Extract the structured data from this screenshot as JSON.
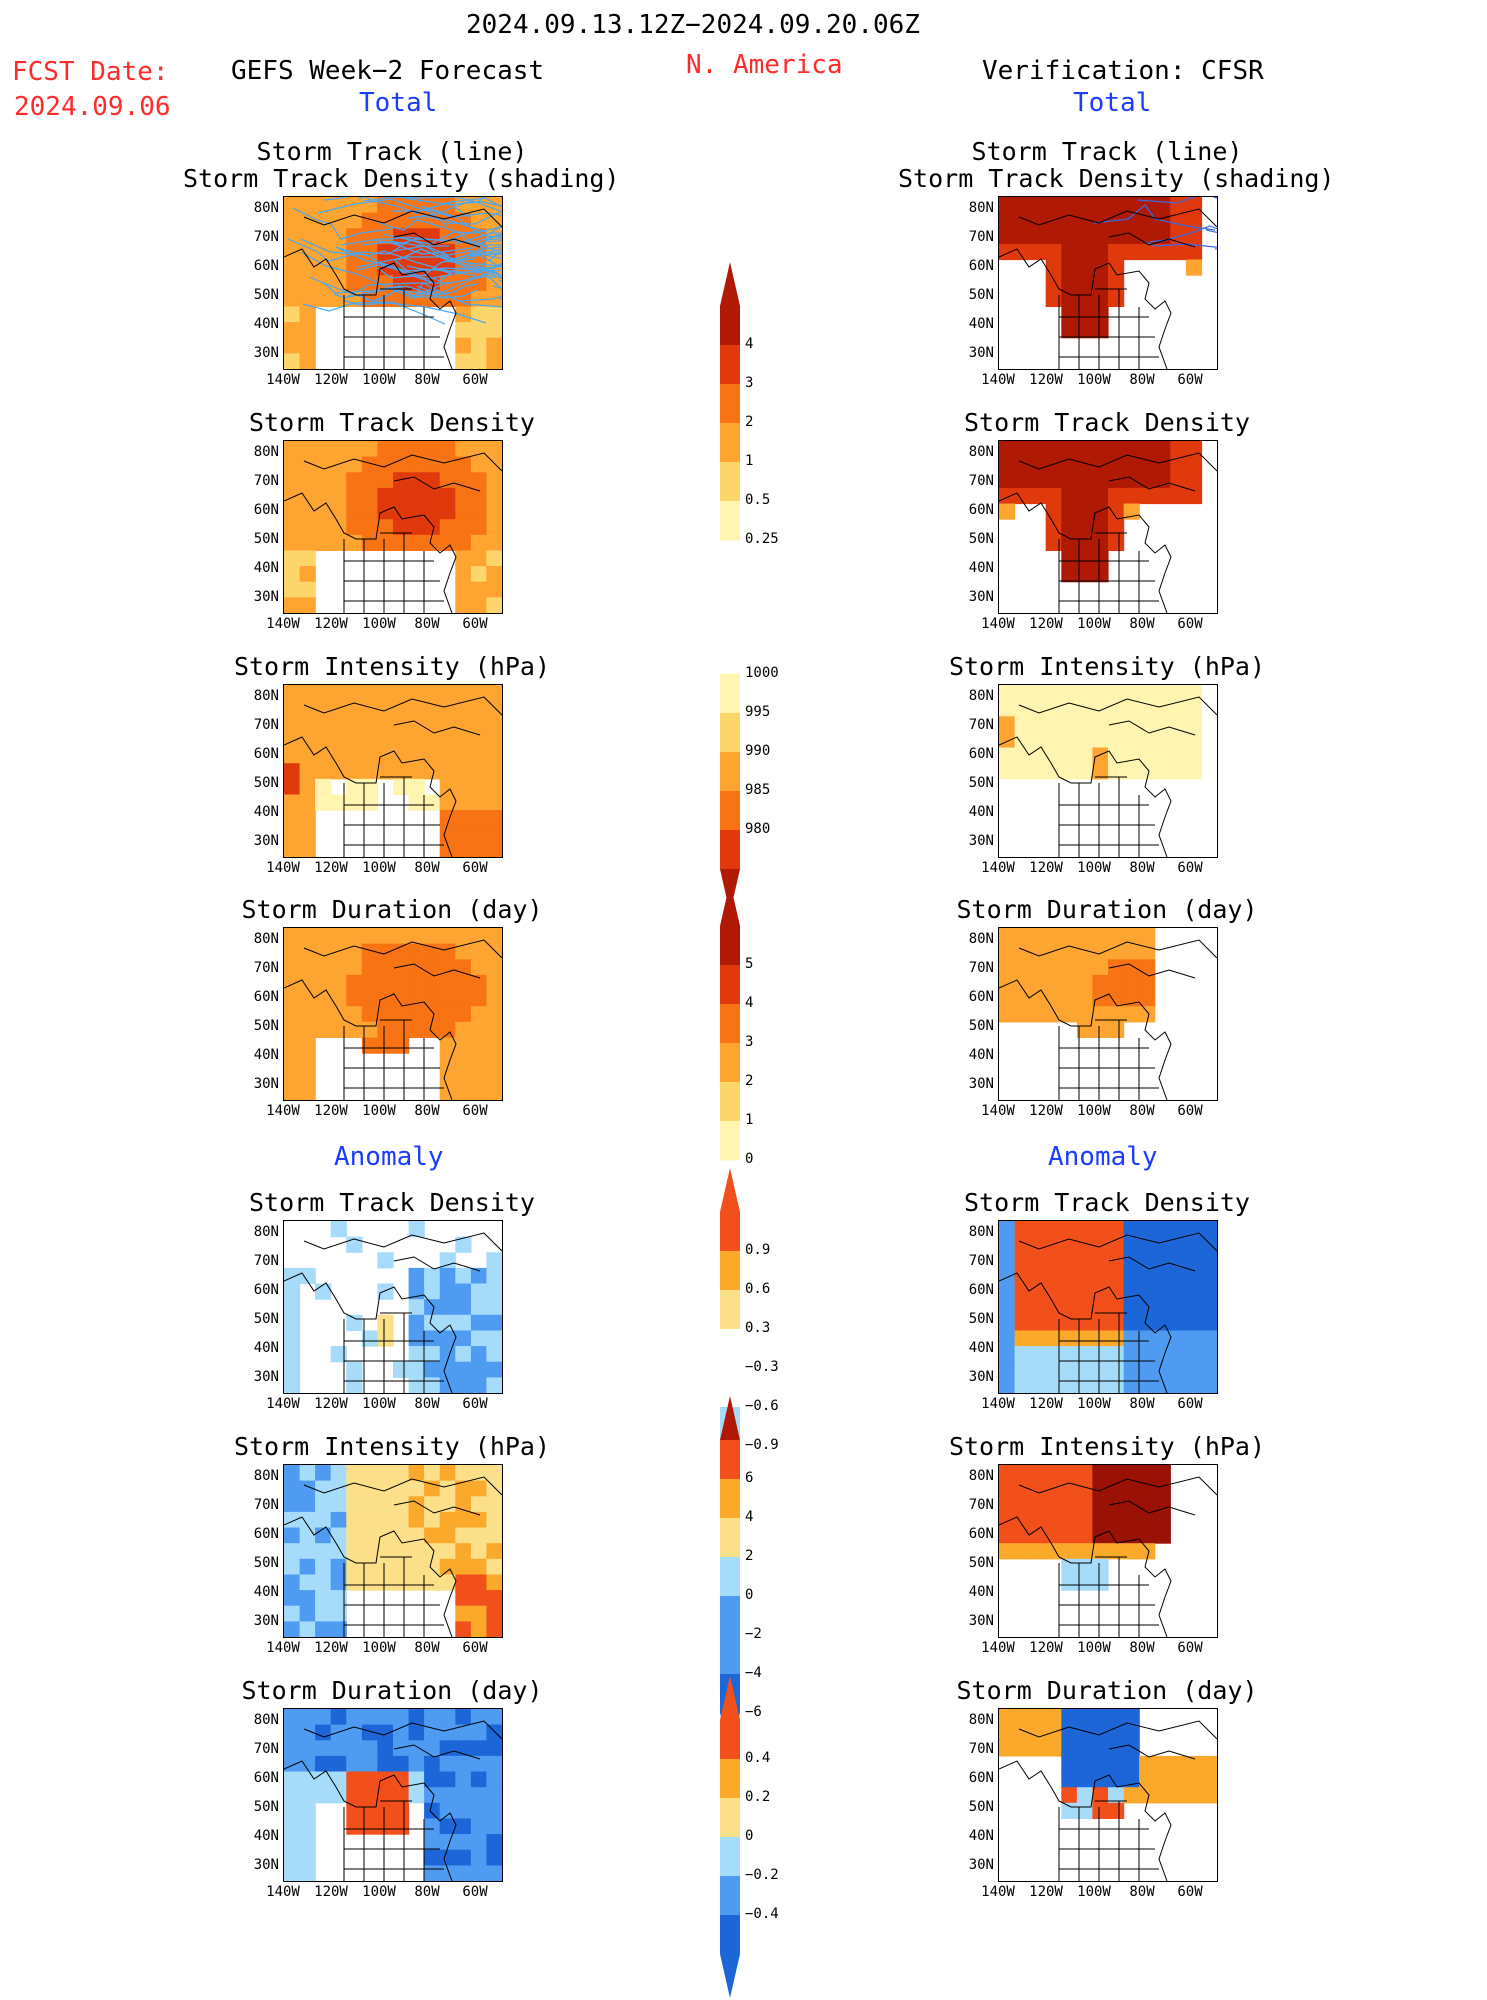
{
  "header": {
    "period": "2024.09.13.12Z−2024.09.20.06Z",
    "fcst_date_label": "FCST Date:",
    "fcst_date_value": "2024.09.06",
    "forecast_title": "GEFS Week−2 Forecast",
    "region": "N. America",
    "verification_title": "Verification: CFSR"
  },
  "sections": {
    "total": "Total",
    "anomaly": "Anomaly"
  },
  "panel_titles": {
    "track_line": "Storm Track (line)",
    "track_density_shading": "Storm Track Density (shading)",
    "track_density": "Storm Track Density",
    "intensity": "Storm Intensity (hPa)",
    "duration": "Storm Duration (day)"
  },
  "axes": {
    "lat_labels": [
      "80N",
      "70N",
      "60N",
      "50N",
      "40N",
      "30N"
    ],
    "lon_labels": [
      "140W",
      "120W",
      "100W",
      "80W",
      "60W"
    ]
  },
  "colorbars": {
    "density": [
      "4",
      "3",
      "2",
      "1",
      "0.5",
      "0.25"
    ],
    "intensity": [
      "1000",
      "995",
      "990",
      "985",
      "980"
    ],
    "duration": [
      "5",
      "4",
      "3",
      "2",
      "1",
      "0"
    ],
    "anom_density": [
      "0.9",
      "0.6",
      "0.3",
      "−0.3",
      "−0.6",
      "−0.9"
    ],
    "anom_intensity": [
      "6",
      "4",
      "2",
      "0",
      "−2",
      "−4",
      "−6"
    ],
    "anom_duration": [
      "0.4",
      "0.2",
      "0",
      "−0.2",
      "−0.4"
    ]
  },
  "colors": {
    "title_red": "#ff2a2a",
    "section_blue": "#1b3cff",
    "seq": [
      "#fff5b0",
      "#fcd66a",
      "#fda431",
      "#f87314",
      "#e0390c",
      "#b01a05"
    ],
    "div": [
      "#1c66d8",
      "#4f9bf2",
      "#a6dcfa",
      "#ffffff",
      "#fbe089",
      "#fba92b",
      "#f2501a"
    ]
  }
}
